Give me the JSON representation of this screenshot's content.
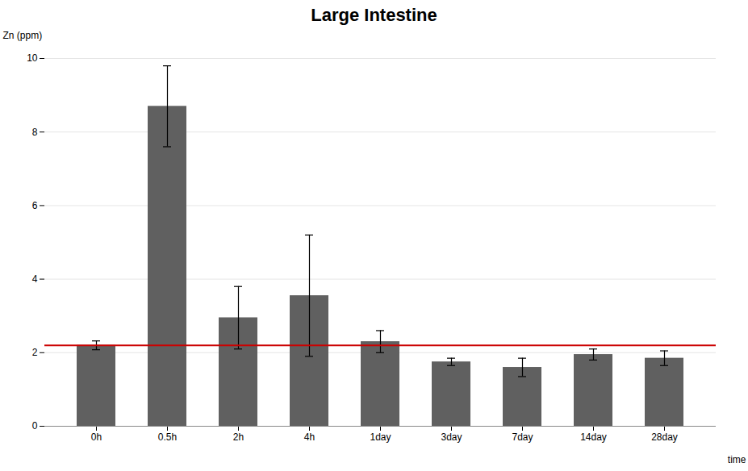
{
  "chart_data": {
    "type": "bar",
    "title": "Large Intestine",
    "ylabel": "Zn (ppm)",
    "xlabel": "time",
    "categories": [
      "0h",
      "0.5h",
      "2h",
      "4h",
      "1day",
      "3day",
      "7day",
      "14day",
      "28day"
    ],
    "values": [
      2.2,
      8.7,
      2.95,
      3.55,
      2.3,
      1.75,
      1.6,
      1.95,
      1.85
    ],
    "errors": [
      0.12,
      1.1,
      0.85,
      1.65,
      0.3,
      0.1,
      0.25,
      0.15,
      0.2
    ],
    "color": "#606060",
    "reference_line": {
      "value": 2.2,
      "color": "#cc0000"
    },
    "ylim": [
      0,
      10
    ],
    "yticks": [
      0,
      2,
      4,
      6,
      8,
      10
    ],
    "grid": true
  }
}
